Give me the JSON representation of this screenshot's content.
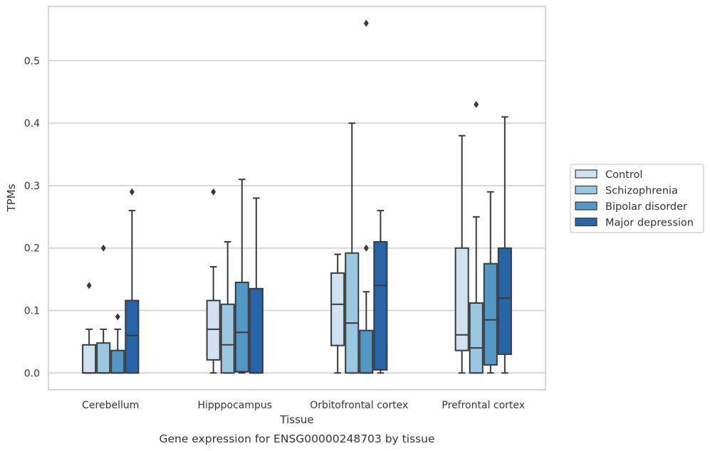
{
  "chart_data": {
    "type": "box",
    "caption": "Gene expression for ENSG00000248703 by tissue",
    "xlabel": "Tissue",
    "ylabel": "TPMs",
    "ylim": [
      -0.027,
      0.587
    ],
    "yticks": [
      "0.0",
      "0.1",
      "0.2",
      "0.3",
      "0.4",
      "0.5"
    ],
    "grid": true,
    "legend_position": "right",
    "categories": [
      "Cerebellum",
      "Hipppocampus",
      "Orbitofrontal cortex",
      "Prefrontal cortex"
    ],
    "series": [
      {
        "name": "Control",
        "color": "#d0e1f2",
        "boxes": [
          {
            "q1": 0.0,
            "median": 0.0,
            "q3": 0.045,
            "whislo": 0.0,
            "whishi": 0.07,
            "fliers": [
              0.14
            ]
          },
          {
            "q1": 0.021,
            "median": 0.07,
            "q3": 0.116,
            "whislo": 0.0,
            "whishi": 0.17,
            "fliers": [
              0.29
            ]
          },
          {
            "q1": 0.044,
            "median": 0.11,
            "q3": 0.16,
            "whislo": 0.0,
            "whishi": 0.19,
            "fliers": []
          },
          {
            "q1": 0.036,
            "median": 0.061,
            "q3": 0.2,
            "whislo": 0.0,
            "whishi": 0.38,
            "fliers": []
          }
        ]
      },
      {
        "name": "Schizophrenia",
        "color": "#9ac8e0",
        "boxes": [
          {
            "q1": 0.0,
            "median": 0.0,
            "q3": 0.048,
            "whislo": 0.0,
            "whishi": 0.07,
            "fliers": [
              0.2
            ]
          },
          {
            "q1": 0.0,
            "median": 0.045,
            "q3": 0.11,
            "whislo": 0.0,
            "whishi": 0.21,
            "fliers": []
          },
          {
            "q1": 0.0,
            "median": 0.08,
            "q3": 0.192,
            "whislo": 0.0,
            "whishi": 0.4,
            "fliers": []
          },
          {
            "q1": 0.0,
            "median": 0.04,
            "q3": 0.112,
            "whislo": 0.0,
            "whishi": 0.25,
            "fliers": [
              0.43
            ]
          }
        ]
      },
      {
        "name": "Bipolar disorder",
        "color": "#5198c7",
        "boxes": [
          {
            "q1": 0.0,
            "median": 0.0,
            "q3": 0.036,
            "whislo": 0.0,
            "whishi": 0.07,
            "fliers": [
              0.09
            ]
          },
          {
            "q1": 0.002,
            "median": 0.065,
            "q3": 0.145,
            "whislo": 0.0,
            "whishi": 0.31,
            "fliers": []
          },
          {
            "q1": 0.0,
            "median": 0.0,
            "q3": 0.068,
            "whislo": 0.0,
            "whishi": 0.13,
            "fliers": [
              0.2,
              0.56
            ]
          },
          {
            "q1": 0.013,
            "median": 0.085,
            "q3": 0.175,
            "whislo": 0.0,
            "whishi": 0.29,
            "fliers": []
          }
        ]
      },
      {
        "name": "Major depression",
        "color": "#2666a8",
        "boxes": [
          {
            "q1": 0.0,
            "median": 0.06,
            "q3": 0.116,
            "whislo": 0.0,
            "whishi": 0.26,
            "fliers": [
              0.29
            ]
          },
          {
            "q1": 0.0,
            "median": 0.0,
            "q3": 0.135,
            "whislo": 0.0,
            "whishi": 0.28,
            "fliers": []
          },
          {
            "q1": 0.005,
            "median": 0.14,
            "q3": 0.21,
            "whislo": 0.0,
            "whishi": 0.26,
            "fliers": []
          },
          {
            "q1": 0.03,
            "median": 0.12,
            "q3": 0.2,
            "whislo": 0.0,
            "whishi": 0.41,
            "fliers": []
          }
        ]
      }
    ]
  }
}
